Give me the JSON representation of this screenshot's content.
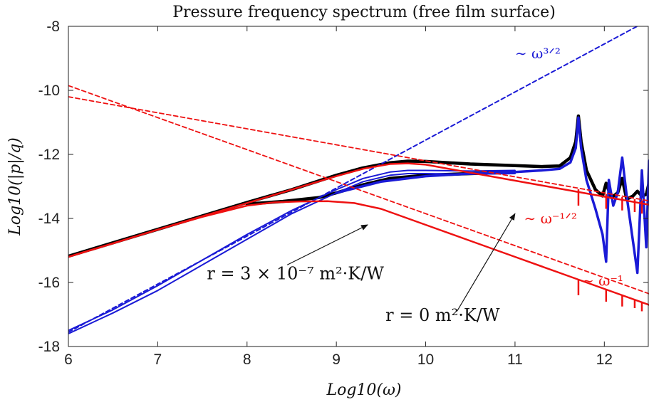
{
  "chart_data": {
    "type": "line",
    "title": "Pressure frequency spectrum (free film surface)",
    "xlabel": "Log10(ω)",
    "ylabel": "Log10(|p|/q)",
    "xlim": [
      6,
      12.5
    ],
    "ylim": [
      -18,
      -8
    ],
    "xticks": [
      6,
      7,
      8,
      9,
      10,
      11,
      12
    ],
    "yticks": [
      -18,
      -16,
      -14,
      -12,
      -10,
      -8
    ],
    "xtick_labels": [
      "6",
      "7",
      "8",
      "9",
      "10",
      "11",
      "12"
    ],
    "ytick_labels": [
      "-18",
      "-16",
      "-14",
      "-12",
      "-10",
      "-8"
    ],
    "grid": false,
    "series": [
      {
        "color": "#000000",
        "width": 4.5,
        "dash": false,
        "x": [
          6.0,
          6.5,
          7.0,
          7.5,
          8.0,
          8.5,
          9.0,
          9.3,
          9.6,
          9.8,
          10.0,
          10.5,
          11.0,
          11.3,
          11.5,
          11.62,
          11.68,
          11.71,
          11.74,
          11.8,
          11.9,
          11.98,
          12.02,
          12.08,
          12.15,
          12.2,
          12.25,
          12.32,
          12.37,
          12.42,
          12.47,
          12.5
        ],
        "y": [
          -15.18,
          -14.76,
          -14.34,
          -13.92,
          -13.5,
          -13.1,
          -12.65,
          -12.42,
          -12.26,
          -12.21,
          -12.22,
          -12.3,
          -12.35,
          -12.38,
          -12.36,
          -12.1,
          -11.6,
          -10.8,
          -11.6,
          -12.5,
          -13.1,
          -13.3,
          -12.9,
          -13.35,
          -13.2,
          -12.75,
          -13.4,
          -13.3,
          -13.15,
          -13.3,
          -13.25,
          -12.9
        ]
      },
      {
        "color": "#000000",
        "width": 4.5,
        "dash": false,
        "x": [
          8.0,
          8.4,
          8.8,
          9.0,
          9.3,
          9.6,
          10.0,
          10.5,
          11.0
        ],
        "y": [
          -13.55,
          -13.47,
          -13.35,
          -13.2,
          -12.95,
          -12.75,
          -12.65,
          -12.6,
          -12.55
        ]
      },
      {
        "color": "#1a1ad6",
        "width": 3.5,
        "dash": false,
        "x": [
          9.0,
          9.5,
          10.0,
          10.5,
          11.0,
          11.3,
          11.5,
          11.62,
          11.68,
          11.71,
          11.74,
          11.8,
          11.9,
          11.98,
          12.02,
          12.05,
          12.1,
          12.15,
          12.2,
          12.25,
          12.3,
          12.37,
          12.42,
          12.47,
          12.5
        ],
        "y": [
          -13.2,
          -12.85,
          -12.68,
          -12.6,
          -12.55,
          -12.5,
          -12.45,
          -12.25,
          -11.8,
          -10.85,
          -11.8,
          -12.8,
          -13.7,
          -14.5,
          -15.35,
          -12.8,
          -13.6,
          -13.2,
          -12.1,
          -13.3,
          -14.3,
          -15.7,
          -12.5,
          -14.9,
          -12.2
        ]
      },
      {
        "color": "#1a1ad6",
        "width": 2,
        "dash": false,
        "x": [
          6.0,
          6.5,
          7.0,
          7.5,
          8.0,
          8.5,
          9.0,
          9.3,
          9.6,
          9.8,
          10.0,
          10.5,
          11.0
        ],
        "y": [
          -17.5,
          -16.85,
          -16.1,
          -15.3,
          -14.5,
          -13.75,
          -13.1,
          -12.75,
          -12.55,
          -12.5,
          -12.5,
          -12.52,
          -12.5
        ]
      },
      {
        "color": "#1a1ad6",
        "width": 2,
        "dash": false,
        "x": [
          6.0,
          6.5,
          7.0,
          7.5,
          8.0,
          8.5,
          9.0,
          9.3,
          9.6,
          9.8,
          10.0,
          10.5,
          11.0
        ],
        "y": [
          -17.6,
          -16.95,
          -16.25,
          -15.45,
          -14.65,
          -13.85,
          -13.2,
          -12.85,
          -12.65,
          -12.6,
          -12.6,
          -12.62,
          -12.6
        ]
      },
      {
        "color": "#1a1ad6",
        "width": 2,
        "dash": true,
        "x": [
          6.0,
          7.0,
          8.0,
          9.0,
          10.0,
          11.0,
          12.0,
          12.5
        ],
        "y": [
          -17.55,
          -16.05,
          -14.55,
          -13.05,
          -11.55,
          -10.05,
          -8.55,
          -7.8
        ]
      },
      {
        "color": "#ee1111",
        "width": 2.5,
        "dash": false,
        "x": [
          6.0,
          6.5,
          7.0,
          7.5,
          8.0,
          8.5,
          9.0,
          9.3,
          9.6,
          9.8,
          10.0,
          10.5,
          11.0,
          11.5,
          12.0,
          12.5
        ],
        "y": [
          -15.2,
          -14.78,
          -14.35,
          -13.93,
          -13.52,
          -13.1,
          -12.68,
          -12.45,
          -12.3,
          -12.28,
          -12.32,
          -12.57,
          -12.82,
          -13.07,
          -13.32,
          -13.57
        ]
      },
      {
        "color": "#ee1111",
        "width": 2.5,
        "dash": false,
        "x": [
          6.0,
          6.5,
          7.0,
          7.5,
          8.0,
          8.3,
          8.6,
          8.9,
          9.2,
          9.5,
          10.0,
          10.5,
          11.0,
          11.5,
          12.0,
          12.5
        ],
        "y": [
          -15.2,
          -14.78,
          -14.35,
          -13.95,
          -13.6,
          -13.5,
          -13.47,
          -13.46,
          -13.52,
          -13.7,
          -14.2,
          -14.7,
          -15.2,
          -15.7,
          -16.2,
          -16.7
        ]
      },
      {
        "color": "#ee1111",
        "width": 1.8,
        "dash": true,
        "x": [
          6.0,
          12.5
        ],
        "y": [
          -9.85,
          -16.35
        ]
      },
      {
        "color": "#ee1111",
        "width": 1.8,
        "dash": true,
        "x": [
          6.0,
          12.5
        ],
        "y": [
          -10.2,
          -13.45
        ]
      }
    ],
    "spikes": [
      {
        "x": 11.71,
        "y_top": -13.09,
        "y_bot": -13.6
      },
      {
        "x": 12.02,
        "y_top": -13.24,
        "y_bot": -13.7
      },
      {
        "x": 12.2,
        "y_top": -13.33,
        "y_bot": -13.75
      },
      {
        "x": 12.34,
        "y_top": -13.4,
        "y_bot": -13.8
      },
      {
        "x": 12.42,
        "y_top": -13.44,
        "y_bot": -13.85
      },
      {
        "x": 11.71,
        "y_top": -15.91,
        "y_bot": -16.4
      },
      {
        "x": 12.02,
        "y_top": -16.22,
        "y_bot": -16.6
      },
      {
        "x": 12.2,
        "y_top": -16.4,
        "y_bot": -16.75
      },
      {
        "x": 12.34,
        "y_top": -16.54,
        "y_bot": -16.8
      },
      {
        "x": 12.42,
        "y_top": -16.62,
        "y_bot": -16.9
      }
    ],
    "annotations": [
      {
        "text": "r = 3 × 10⁻⁷ m²·K/W",
        "color": "#111111",
        "at": [
          7.55,
          -15.9
        ],
        "anchor": "start",
        "size": 24
      },
      {
        "text": "r = 0 m²·K/W",
        "color": "#111111",
        "at": [
          9.55,
          -17.2
        ],
        "anchor": "start",
        "size": 24
      },
      {
        "text": "∼ ω³ᐟ²",
        "color": "#1a1ad6",
        "at": [
          11.0,
          -9.0
        ],
        "anchor": "start",
        "size": 20
      },
      {
        "text": "∼ ω⁻¹ᐟ²",
        "color": "#ee1111",
        "at": [
          11.1,
          -14.15
        ],
        "anchor": "start",
        "size": 20
      },
      {
        "text": "∼ ω⁻¹",
        "color": "#ee1111",
        "at": [
          11.75,
          -16.1
        ],
        "anchor": "start",
        "size": 20
      }
    ],
    "arrows": [
      {
        "from": [
          8.45,
          -15.45
        ],
        "to": [
          9.35,
          -14.2
        ]
      },
      {
        "from": [
          10.35,
          -16.9
        ],
        "to": [
          11.0,
          -13.85
        ]
      }
    ]
  }
}
